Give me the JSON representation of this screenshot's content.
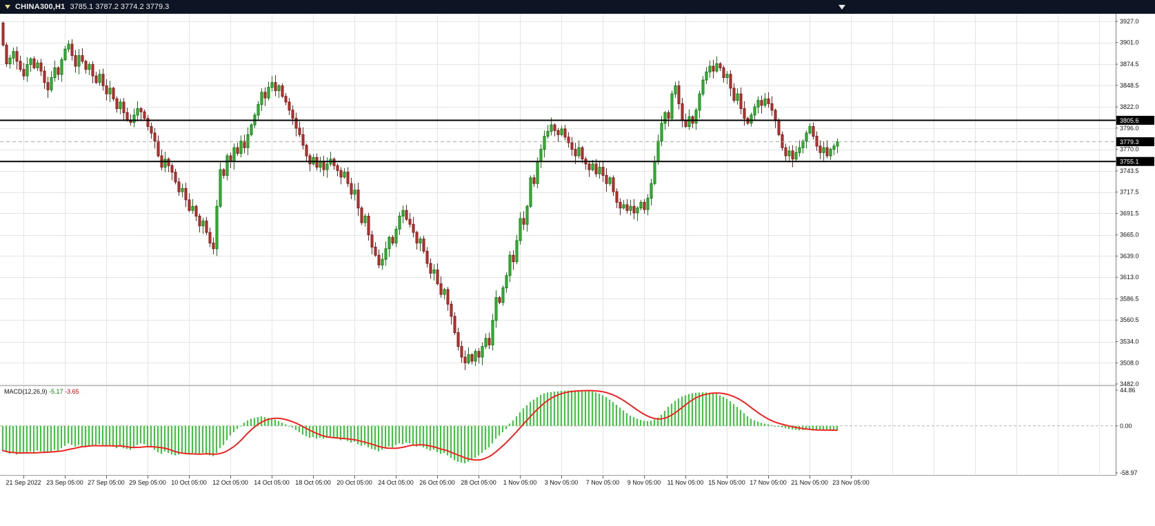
{
  "title_bar": {
    "symbol": "CHINA300,H1",
    "ohlc": "3785.1 3787.2 3774.2 3779.3"
  },
  "colors": {
    "chart_bg": "#ffffff",
    "grid": "#e4e4e4",
    "up": "#35bd35",
    "up_border": "#117a11",
    "down": "#c0342c",
    "down_border": "#801d1d",
    "macd_hist": "#2fd02f",
    "macd_signal": "#ee2222",
    "level_line": "#000000",
    "current_line": "#a8a8a8",
    "zero_dash": "#b4b4b4",
    "separator": "#9a9a9a",
    "axis_border": "#808080",
    "badge_bg": "#000000",
    "badge_text": "#ffffff",
    "titlebar_bg": "#0d1524",
    "titlebar_text": "#f2f2f2",
    "macd_main_value": "#008000",
    "macd_signal_value": "#cc0000"
  },
  "levels": [
    3805.6,
    3755.1
  ],
  "current_price": 3779.3,
  "price_axis": {
    "ticks": [
      "3927.0",
      "3901.0",
      "3874.5",
      "3848.5",
      "3822.0",
      "3796.0",
      "3770.0",
      "3743.5",
      "3717.5",
      "3691.5",
      "3665.0",
      "3639.0",
      "3613.0",
      "3586.5",
      "3560.5",
      "3534.0",
      "3508.0",
      "3482.0"
    ],
    "badges": [
      {
        "value": 3805.6,
        "label": "3805.6"
      },
      {
        "value": 3779.3,
        "label": "3779.3"
      },
      {
        "value": 3755.1,
        "label": "3755.1"
      }
    ]
  },
  "time_axis": {
    "labels": [
      "21 Sep 2022",
      "23 Sep 05:00",
      "27 Sep 05:00",
      "29 Sep 05:00",
      "10 Oct 05:00",
      "12 Oct 05:00",
      "14 Oct 05:00",
      "18 Oct 05:00",
      "20 Oct 05:00",
      "24 Oct 05:00",
      "26 Oct 05:00",
      "28 Oct 05:00",
      "1 Nov 05:00",
      "3 Nov 05:00",
      "7 Nov 05:00",
      "9 Nov 05:00",
      "11 Nov 05:00",
      "15 Nov 05:00",
      "17 Nov 05:00",
      "21 Nov 05:00",
      "23 Nov 05:00"
    ]
  },
  "macd": {
    "label": "MACD(12,26,9)",
    "value_main": "-5.17",
    "value_signal": "-3.65",
    "axis_ticks": [
      "44.86",
      "0.00",
      "-58.97"
    ]
  },
  "chart_data": {
    "type": "candlestick",
    "symbol": "CHINA300",
    "timeframe": "H1",
    "title": "CHINA300,H1",
    "current_ohlc": {
      "open": 3785.1,
      "high": 3787.2,
      "low": 3774.2,
      "close": 3779.3
    },
    "ylim": [
      3482.0,
      3927.0
    ],
    "levels": [
      3805.6,
      3755.1
    ],
    "x_labels_every_n_candles": 12,
    "first_open": 3925,
    "closes": [
      3898,
      3875,
      3882,
      3890,
      3878,
      3868,
      3860,
      3874,
      3881,
      3870,
      3876,
      3866,
      3852,
      3843,
      3858,
      3870,
      3862,
      3880,
      3893,
      3899,
      3885,
      3872,
      3885,
      3878,
      3868,
      3874,
      3860,
      3852,
      3862,
      3848,
      3838,
      3845,
      3832,
      3820,
      3828,
      3815,
      3806,
      3803,
      3812,
      3820,
      3816,
      3808,
      3798,
      3790,
      3780,
      3762,
      3748,
      3758,
      3750,
      3742,
      3730,
      3718,
      3722,
      3708,
      3695,
      3700,
      3688,
      3676,
      3682,
      3668,
      3655,
      3648,
      3700,
      3745,
      3738,
      3762,
      3755,
      3772,
      3765,
      3780,
      3772,
      3788,
      3800,
      3812,
      3825,
      3840,
      3833,
      3846,
      3852,
      3842,
      3848,
      3835,
      3828,
      3818,
      3808,
      3796,
      3788,
      3775,
      3762,
      3752,
      3760,
      3748,
      3755,
      3745,
      3752,
      3758,
      3750,
      3744,
      3736,
      3742,
      3728,
      3715,
      3720,
      3698,
      3680,
      3688,
      3665,
      3650,
      3640,
      3628,
      3635,
      3648,
      3662,
      3655,
      3672,
      3688,
      3695,
      3684,
      3678,
      3668,
      3655,
      3660,
      3645,
      3630,
      3618,
      3622,
      3605,
      3592,
      3598,
      3580,
      3565,
      3545,
      3528,
      3515,
      3508,
      3518,
      3510,
      3522,
      3515,
      3528,
      3538,
      3530,
      3560,
      3588,
      3582,
      3600,
      3615,
      3640,
      3632,
      3658,
      3685,
      3678,
      3700,
      3735,
      3728,
      3755,
      3770,
      3786,
      3792,
      3800,
      3793,
      3788,
      3795,
      3785,
      3778,
      3770,
      3762,
      3772,
      3758,
      3752,
      3745,
      3752,
      3740,
      3748,
      3738,
      3728,
      3735,
      3718,
      3705,
      3698,
      3702,
      3695,
      3700,
      3692,
      3698,
      3705,
      3696,
      3710,
      3728,
      3755,
      3780,
      3802,
      3815,
      3808,
      3838,
      3848,
      3826,
      3806,
      3798,
      3810,
      3802,
      3818,
      3838,
      3855,
      3865,
      3872,
      3866,
      3875,
      3870,
      3858,
      3862,
      3845,
      3830,
      3838,
      3820,
      3808,
      3802,
      3812,
      3822,
      3830,
      3824,
      3832,
      3826,
      3818,
      3805,
      3788,
      3772,
      3762,
      3768,
      3758,
      3766,
      3772,
      3780,
      3790,
      3798,
      3786,
      3774,
      3766,
      3772,
      3762,
      3770,
      3774,
      3779.3
    ],
    "indicator": {
      "type": "MACD",
      "params": [
        12,
        26,
        9
      ],
      "signal_period": 9,
      "ylim": [
        -58.97,
        44.86
      ],
      "current_main": -5.17,
      "current_signal": -3.65,
      "histogram": [
        -31,
        -33,
        -35,
        -34,
        -36,
        -35,
        -33,
        -34,
        -32,
        -33,
        -31,
        -32,
        -33,
        -34,
        -32,
        -30,
        -31,
        -28,
        -25,
        -22,
        -24,
        -26,
        -24,
        -25,
        -27,
        -26,
        -24,
        -25,
        -23,
        -24,
        -26,
        -24,
        -26,
        -28,
        -26,
        -28,
        -29,
        -30,
        -27,
        -24,
        -22,
        -23,
        -25,
        -27,
        -30,
        -33,
        -35,
        -32,
        -34,
        -36,
        -37,
        -36,
        -34,
        -35,
        -36,
        -34,
        -35,
        -36,
        -34,
        -35,
        -37,
        -38,
        -34,
        -28,
        -24,
        -18,
        -12,
        -8,
        -4,
        0,
        4,
        7,
        9,
        10,
        11,
        12,
        11,
        10,
        9,
        8,
        6,
        4,
        2,
        0,
        -2,
        -5,
        -8,
        -11,
        -13,
        -15,
        -14,
        -16,
        -15,
        -16,
        -15,
        -14,
        -15,
        -16,
        -18,
        -17,
        -19,
        -21,
        -20,
        -23,
        -25,
        -24,
        -27,
        -29,
        -30,
        -32,
        -30,
        -28,
        -26,
        -27,
        -24,
        -22,
        -23,
        -21,
        -22,
        -24,
        -26,
        -25,
        -27,
        -29,
        -31,
        -30,
        -33,
        -35,
        -34,
        -37,
        -40,
        -43,
        -45,
        -46,
        -47,
        -45,
        -42,
        -40,
        -37,
        -34,
        -30,
        -27,
        -22,
        -16,
        -12,
        -8,
        -4,
        3,
        7,
        12,
        17,
        22,
        26,
        30,
        33,
        36,
        39,
        41,
        42,
        42.5,
        43,
        43.5,
        44,
        44.2,
        44.4,
        44.6,
        44.8,
        44.8,
        44.6,
        44.3,
        43.8,
        43,
        42,
        40.5,
        38.5,
        36,
        33,
        30,
        26.5,
        23,
        19.5,
        16,
        13,
        11,
        9,
        7.5,
        6.5,
        6,
        6.5,
        8,
        10.5,
        14,
        19,
        24,
        28,
        31.5,
        34.5,
        37,
        38.5,
        40,
        41,
        41.7,
        42,
        42.2,
        42,
        41.6,
        41,
        40,
        38.5,
        36.5,
        34,
        31,
        27.5,
        24,
        20,
        16,
        12,
        9,
        7,
        5.5,
        4,
        3,
        2,
        1,
        0,
        -1,
        -2,
        -3,
        -4,
        -4.5,
        -5,
        -5.5,
        -5,
        -4.5,
        -5,
        -5.5,
        -6,
        -5.5,
        -5,
        -5.5,
        -5.5,
        -5.3,
        -5.17
      ]
    }
  }
}
